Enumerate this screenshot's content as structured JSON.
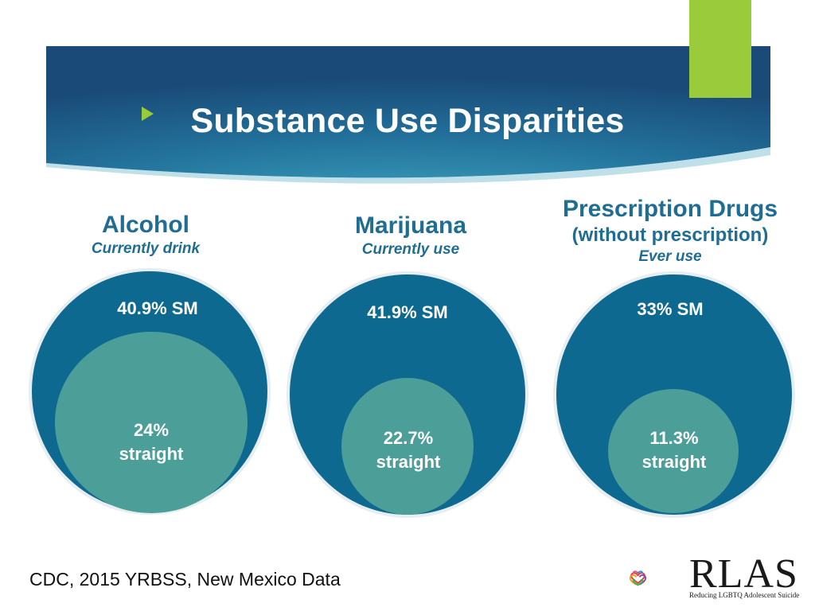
{
  "slide": {
    "title": "Substance Use Disparities",
    "source": "CDC, 2015 YRBSS, New Mexico Data"
  },
  "colors": {
    "banner_dark": "#1b4f7c",
    "banner_light": "#2f93b3",
    "accent": "#9acb3b",
    "sm_circle": "#0e6990",
    "straight_circle": "#4c9e98",
    "heading": "#1f6d93"
  },
  "columns": [
    {
      "heading": "Alcohol",
      "subheading": "Currently drink",
      "sm_label": "40.9% SM",
      "straight_value": "24%",
      "straight_word": "straight"
    },
    {
      "heading": "Marijuana",
      "subheading": "Currently use",
      "sm_label": "41.9% SM",
      "straight_value": "22.7%",
      "straight_word": "straight"
    },
    {
      "heading": "Prescription Drugs",
      "qualifier": "(without prescription)",
      "subheading": "Ever use",
      "sm_label": "33% SM",
      "straight_value": "11.3%",
      "straight_word": "straight"
    }
  ],
  "logo": {
    "name": "RLAS",
    "tagline": "Reducing LGBTQ Adolescent Suicide",
    "icon": "interlocking-hearts-icon"
  }
}
